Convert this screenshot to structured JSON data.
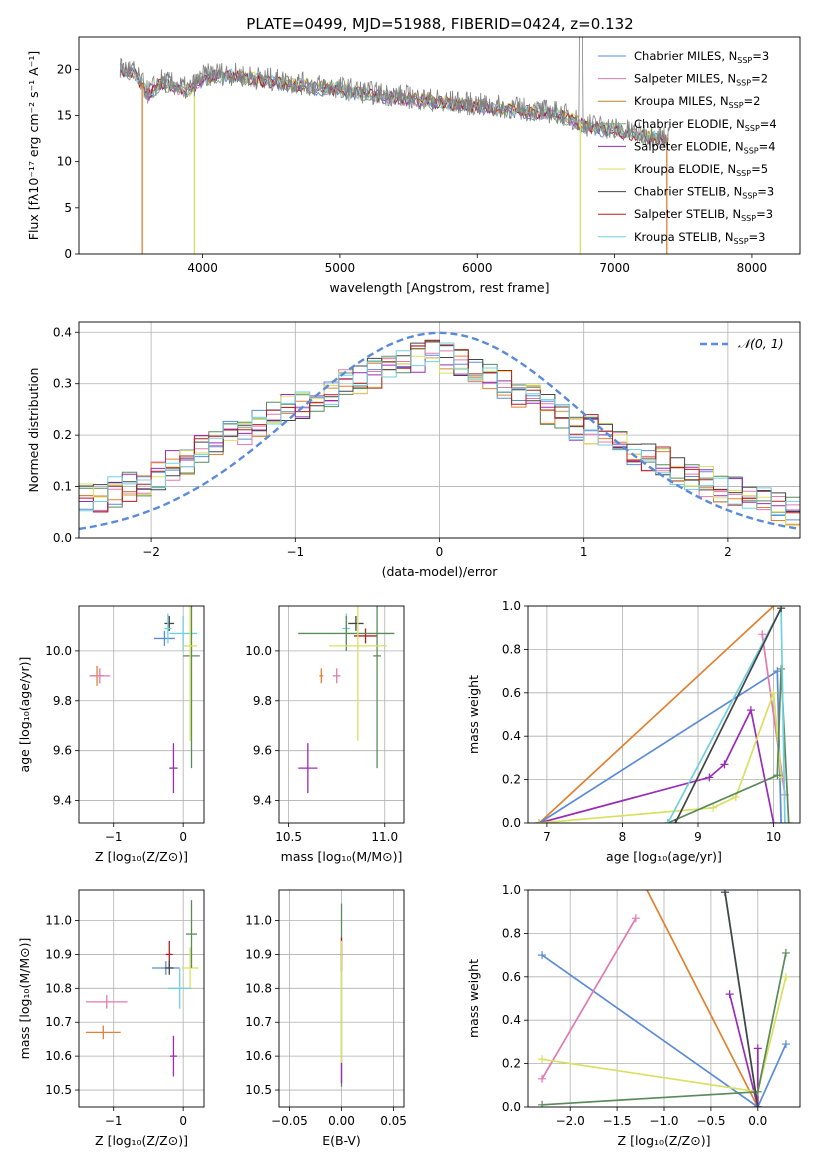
{
  "chart_data": [
    {
      "id": "spectrum",
      "type": "line",
      "title": "PLATE=0499, MJD=51988, FIBERID=0424, z=0.132",
      "xlabel": "wavelength [Angstrom, rest frame]",
      "ylabel": "Flux [fλ10⁻¹⁷ erg cm⁻² s⁻¹ A⁻¹]",
      "xlim": [
        3100,
        8350
      ],
      "ylim": [
        0,
        23.5
      ],
      "xticks": [
        4000,
        5000,
        6000,
        7000,
        8000
      ],
      "yticks": [
        0,
        5,
        10,
        15,
        20
      ],
      "grid": false,
      "legend_position": "top-right",
      "legend": [
        {
          "label": "Chabrier MILES, N",
          "sub": "SSP",
          "suffix": "=3",
          "color": "#5b8bd8"
        },
        {
          "label": "Salpeter MILES, N",
          "sub": "SSP",
          "suffix": "=2",
          "color": "#e07ab0"
        },
        {
          "label": "Kroupa MILES, N",
          "sub": "SSP",
          "suffix": "=2",
          "color": "#b8862a"
        },
        {
          "label": "Chabrier ELODIE, N",
          "sub": "SSP",
          "suffix": "=4",
          "color": "#7aa87a"
        },
        {
          "label": "Salpeter ELODIE, N",
          "sub": "SSP",
          "suffix": "=4",
          "color": "#9a2bb8"
        },
        {
          "label": "Kroupa ELODIE, N",
          "sub": "SSP",
          "suffix": "=5",
          "color": "#d8e060"
        },
        {
          "label": "Chabrier STELIB, N",
          "sub": "SSP",
          "suffix": "=3",
          "color": "#444444"
        },
        {
          "label": "Salpeter STELIB, N",
          "sub": "SSP",
          "suffix": "=3",
          "color": "#b02020"
        },
        {
          "label": "Kroupa STELIB, N",
          "sub": "SSP",
          "suffix": "=3",
          "color": "#70d0e0"
        }
      ],
      "data_continuum": {
        "x": [
          3400,
          3500,
          3600,
          3700,
          3800,
          3900,
          4000,
          4100,
          4200,
          4300,
          4400,
          4500,
          4600,
          4800,
          5000,
          5200,
          5400,
          5600,
          5800,
          6000,
          6200,
          6400,
          6600,
          6800,
          7000,
          7200,
          7400
        ],
        "y": [
          20.2,
          19.8,
          17.5,
          18.8,
          18.3,
          17.8,
          19.2,
          19.6,
          19.5,
          19.3,
          19.1,
          18.9,
          18.7,
          18.3,
          18.0,
          17.5,
          17.2,
          16.8,
          16.5,
          16.2,
          15.9,
          15.6,
          15.3,
          14.0,
          13.6,
          13.0,
          12.6
        ]
      },
      "model_edges": [
        {
          "start": 3560,
          "end": 7380,
          "color": "#e08030"
        },
        {
          "start": 3940,
          "end": 6750,
          "color": "#d8e060"
        }
      ]
    },
    {
      "id": "residuals",
      "type": "histogram",
      "xlabel": "(data-model)/error",
      "ylabel": "Normed distribution",
      "xlim": [
        -2.5,
        2.5
      ],
      "ylim": [
        0,
        0.42
      ],
      "xticks": [
        -2,
        -1,
        0,
        1,
        2
      ],
      "yticks": [
        0.0,
        0.1,
        0.2,
        0.3,
        0.4
      ],
      "grid": true,
      "legend_position": "top-right",
      "reference_label": "𝒩(0, 1)",
      "reference_color": "#5b8bd8",
      "bin_edges_range": [
        -2.5,
        2.5
      ],
      "n_bins": 50,
      "series_colors": [
        "#5b8bd8",
        "#e07ab0",
        "#e08030",
        "#5a8a5a",
        "#9a2bb8",
        "#d8e060",
        "#444444",
        "#b02020",
        "#70d0e0"
      ],
      "mean_shape": [
        0.08,
        0.08,
        0.09,
        0.1,
        0.11,
        0.12,
        0.14,
        0.15,
        0.17,
        0.18,
        0.2,
        0.21,
        0.22,
        0.24,
        0.25,
        0.26,
        0.27,
        0.28,
        0.3,
        0.31,
        0.32,
        0.33,
        0.34,
        0.35,
        0.355,
        0.35,
        0.34,
        0.33,
        0.32,
        0.3,
        0.28,
        0.27,
        0.25,
        0.24,
        0.22,
        0.21,
        0.2,
        0.18,
        0.17,
        0.16,
        0.15,
        0.13,
        0.12,
        0.11,
        0.1,
        0.09,
        0.08,
        0.07,
        0.06,
        0.05
      ]
    },
    {
      "id": "age-vs-z",
      "type": "errorbar",
      "xlabel": "Z [log₁₀(Z/Z⊙)]",
      "ylabel": "age  [log₁₀(age/yr)]",
      "xlim": [
        -1.5,
        0.3
      ],
      "ylim": [
        9.31,
        10.18
      ],
      "xticks": [
        -1,
        0
      ],
      "yticks": [
        9.4,
        9.6,
        9.8,
        10.0
      ],
      "grid": true,
      "points": [
        {
          "x": -1.24,
          "y": 9.9,
          "xerr": 0.1,
          "yerr": 0.04,
          "color": "#e08030"
        },
        {
          "x": -1.2,
          "y": 9.9,
          "xerr": 0.15,
          "yerr": 0.03,
          "color": "#e07ab0"
        },
        {
          "x": -0.27,
          "y": 10.05,
          "xerr": 0.15,
          "yerr": 0.03,
          "color": "#5b8bd8"
        },
        {
          "x": -0.2,
          "y": 10.11,
          "xerr": 0.07,
          "yerr": 0.03,
          "color": "#444444"
        },
        {
          "x": -0.22,
          "y": 10.09,
          "xerr": 0.05,
          "yerr": 0.06,
          "color": "#70d0e0"
        },
        {
          "x": 0.0,
          "y": 10.07,
          "xerr": 0.2,
          "yerr": 0.07,
          "color": "#70d0e0"
        },
        {
          "x": 0.12,
          "y": 9.98,
          "xerr": 0.12,
          "yerr": 0.45,
          "color": "#5a8a5a"
        },
        {
          "x": 0.1,
          "y": 10.02,
          "xerr": 0.1,
          "yerr": 0.38,
          "color": "#d8e060"
        },
        {
          "x": -0.14,
          "y": 9.53,
          "xerr": 0.06,
          "yerr": 0.1,
          "color": "#9a2bb8"
        }
      ]
    },
    {
      "id": "age-vs-mass",
      "type": "errorbar",
      "xlabel": "mass [log₁₀(M/M⊙)]",
      "ylabel": "",
      "xlim": [
        10.45,
        11.1
      ],
      "ylim": [
        9.31,
        10.18
      ],
      "xticks": [
        10.5,
        11.0
      ],
      "yticks": [
        9.4,
        9.6,
        9.8,
        10.0
      ],
      "grid": true,
      "points": [
        {
          "x": 10.67,
          "y": 9.9,
          "xerr": 0.01,
          "yerr": 0.03,
          "color": "#e08030"
        },
        {
          "x": 10.75,
          "y": 9.9,
          "xerr": 0.02,
          "yerr": 0.03,
          "color": "#e07ab0"
        },
        {
          "x": 10.6,
          "y": 9.53,
          "xerr": 0.05,
          "yerr": 0.1,
          "color": "#9a2bb8"
        },
        {
          "x": 10.85,
          "y": 10.11,
          "xerr": 0.04,
          "yerr": 0.03,
          "color": "#444444"
        },
        {
          "x": 10.9,
          "y": 10.06,
          "xerr": 0.06,
          "yerr": 0.03,
          "color": "#b02020"
        },
        {
          "x": 10.8,
          "y": 10.09,
          "xerr": 0.02,
          "yerr": 0.06,
          "color": "#70d0e0"
        },
        {
          "x": 10.8,
          "y": 10.07,
          "xerr": 0.25,
          "yerr": 0.07,
          "color": "#5a8a5a"
        },
        {
          "x": 10.96,
          "y": 9.98,
          "xerr": 0.02,
          "yerr": 0.45,
          "color": "#5a8a5a"
        },
        {
          "x": 10.86,
          "y": 10.02,
          "xerr": 0.15,
          "yerr": 0.38,
          "color": "#d8e060"
        }
      ]
    },
    {
      "id": "weight-vs-age",
      "type": "line",
      "xlabel": "age  [log₁₀(age/yr)]",
      "ylabel": "mass weight",
      "xlim": [
        6.75,
        10.35
      ],
      "ylim": [
        0,
        1.0
      ],
      "xticks": [
        7,
        8,
        9,
        10
      ],
      "yticks": [
        0.0,
        0.2,
        0.4,
        0.6,
        0.8,
        1.0
      ],
      "grid": true,
      "series": [
        {
          "color": "#e08030",
          "x": [
            6.9,
            10.0
          ],
          "y": [
            0.0,
            1.0
          ]
        },
        {
          "color": "#5b8bd8",
          "x": [
            6.9,
            10.05,
            10.1
          ],
          "y": [
            0.0,
            0.7,
            0.0
          ]
        },
        {
          "color": "#e07ab0",
          "x": [
            9.85,
            10.15
          ],
          "y": [
            0.87,
            0.13
          ]
        },
        {
          "color": "#9a2bb8",
          "x": [
            6.9,
            9.15,
            9.35,
            9.7,
            10.0
          ],
          "y": [
            0.0,
            0.21,
            0.27,
            0.52,
            0.0
          ]
        },
        {
          "color": "#d8e060",
          "x": [
            6.9,
            9.2,
            9.5,
            10.0,
            10.1
          ],
          "y": [
            0.0,
            0.07,
            0.12,
            0.6,
            0.21
          ]
        },
        {
          "color": "#5a8a5a",
          "x": [
            8.6,
            10.05,
            10.1,
            10.2
          ],
          "y": [
            0.0,
            0.22,
            0.71,
            0.0
          ]
        },
        {
          "color": "#70d0e0",
          "x": [
            8.6,
            10.1,
            10.15
          ],
          "y": [
            0.0,
            0.99,
            0.0
          ]
        },
        {
          "color": "#444444",
          "x": [
            8.7,
            10.1
          ],
          "y": [
            0.0,
            0.99
          ]
        }
      ]
    },
    {
      "id": "mass-vs-z",
      "type": "errorbar",
      "xlabel": "Z [log₁₀(Z/Z⊙)]",
      "ylabel": "mass [log₁₀(M/M⊙)]",
      "xlim": [
        -1.5,
        0.3
      ],
      "ylim": [
        10.45,
        11.09
      ],
      "xticks": [
        -1,
        0
      ],
      "yticks": [
        10.5,
        10.6,
        10.7,
        10.8,
        10.9,
        11.0
      ],
      "grid": true,
      "points": [
        {
          "x": -1.15,
          "y": 10.67,
          "xerr": 0.25,
          "yerr": 0.02,
          "color": "#e08030"
        },
        {
          "x": -1.1,
          "y": 10.76,
          "xerr": 0.3,
          "yerr": 0.02,
          "color": "#e07ab0"
        },
        {
          "x": -0.25,
          "y": 10.86,
          "xerr": 0.2,
          "yerr": 0.02,
          "color": "#5b8bd8"
        },
        {
          "x": -0.2,
          "y": 10.9,
          "xerr": 0.05,
          "yerr": 0.04,
          "color": "#b02020"
        },
        {
          "x": -0.2,
          "y": 10.86,
          "xerr": 0.06,
          "yerr": 0.02,
          "color": "#444444"
        },
        {
          "x": -0.05,
          "y": 10.8,
          "xerr": 0.17,
          "yerr": 0.06,
          "color": "#70d0e0"
        },
        {
          "x": 0.1,
          "y": 10.86,
          "xerr": 0.12,
          "yerr": 0.06,
          "color": "#d8e060"
        },
        {
          "x": 0.12,
          "y": 10.96,
          "xerr": 0.08,
          "yerr": 0.1,
          "color": "#5a8a5a"
        },
        {
          "x": -0.14,
          "y": 10.6,
          "xerr": 0.05,
          "yerr": 0.06,
          "color": "#9a2bb8"
        }
      ]
    },
    {
      "id": "mass-vs-ebv",
      "type": "errorbar",
      "xlabel": "E(B-V)",
      "ylabel": "",
      "xlim": [
        -0.06,
        0.06
      ],
      "ylim": [
        10.45,
        11.09
      ],
      "xticks": [
        -0.05,
        0.0,
        0.05
      ],
      "yticks": [
        10.5,
        10.6,
        10.7,
        10.8,
        10.9,
        11.0
      ],
      "grid": true,
      "points": [
        {
          "x": 0.0,
          "y": 10.78,
          "xerr": 0.0,
          "yerr": 0.27,
          "color": "#5a8a5a"
        },
        {
          "x": 0.0,
          "y": 10.9,
          "xerr": 0.0,
          "yerr": 0.05,
          "color": "#b02020"
        },
        {
          "x": 0.0,
          "y": 10.76,
          "xerr": 0.0,
          "yerr": 0.18,
          "color": "#d8e060"
        },
        {
          "x": 0.0,
          "y": 10.55,
          "xerr": 0.0,
          "yerr": 0.03,
          "color": "#9a2bb8"
        }
      ]
    },
    {
      "id": "weight-vs-z",
      "type": "line",
      "xlabel": "Z [log₁₀(Z/Z⊙)]",
      "ylabel": "mass weight",
      "xlim": [
        -2.45,
        0.45
      ],
      "ylim": [
        0,
        1.0
      ],
      "xticks": [
        -2.0,
        -1.5,
        -1.0,
        -0.5,
        0.0
      ],
      "yticks": [
        0.0,
        0.2,
        0.4,
        0.6,
        0.8,
        1.0
      ],
      "grid": true,
      "series": [
        {
          "color": "#e08030",
          "x": [
            -1.3,
            0.0
          ],
          "y": [
            1.1,
            0.0
          ]
        },
        {
          "color": "#5b8bd8",
          "x": [
            -2.3,
            0.0,
            0.3
          ],
          "y": [
            0.7,
            0.0,
            0.29
          ]
        },
        {
          "color": "#e07ab0",
          "x": [
            -2.3,
            -1.3
          ],
          "y": [
            0.13,
            0.87
          ]
        },
        {
          "color": "#9a2bb8",
          "x": [
            -0.3,
            0.0,
            0.0
          ],
          "y": [
            0.52,
            0.0,
            0.27
          ]
        },
        {
          "color": "#d8e060",
          "x": [
            -2.3,
            0.0,
            0.3
          ],
          "y": [
            0.22,
            0.07,
            0.6
          ]
        },
        {
          "color": "#5a8a5a",
          "x": [
            -2.3,
            0.0,
            0.3
          ],
          "y": [
            0.01,
            0.07,
            0.71
          ]
        },
        {
          "color": "#70d0e0",
          "x": [
            -0.35,
            0.0
          ],
          "y": [
            0.99,
            0.0
          ]
        },
        {
          "color": "#444444",
          "x": [
            -0.35,
            0.0
          ],
          "y": [
            0.99,
            0.0
          ]
        }
      ]
    }
  ]
}
